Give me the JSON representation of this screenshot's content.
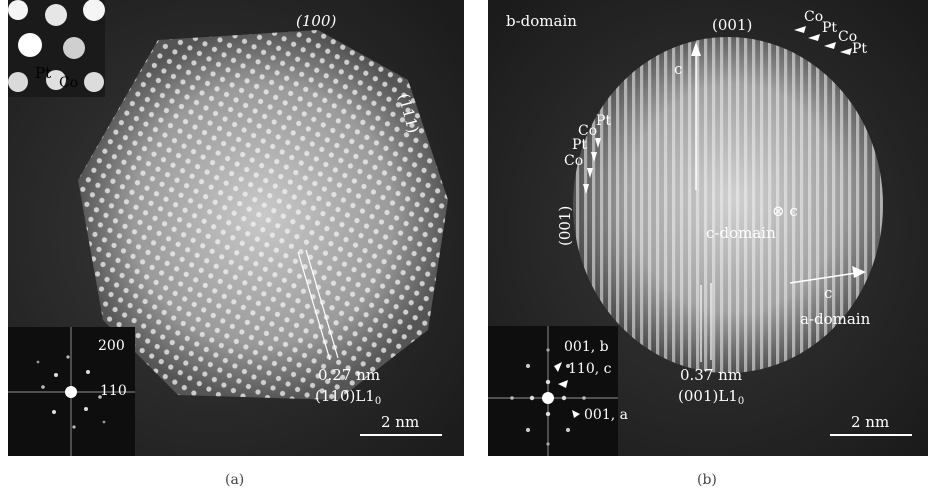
{
  "panel_a": {
    "caption": "(a)",
    "facet_top": "(100)",
    "facet_right": "(111)",
    "inset_pt": "Pt",
    "inset_co": "Co",
    "fft_200": "200",
    "fft_110": "110",
    "spacing": "0.27 nm",
    "plane_main": "(110)L1",
    "plane_sub": "0",
    "scale": "2 nm"
  },
  "panel_b": {
    "caption": "(b)",
    "b_domain": "b-domain",
    "facet_top": "(001)",
    "facet_left": "(001)",
    "c_axis_top": "c",
    "c_axis_center": "⊗ c",
    "c_domain": "c-domain",
    "c_axis_right": "c",
    "a_domain": "a-domain",
    "atoms_top": [
      "Co",
      "Pt",
      "Co",
      "Pt"
    ],
    "atoms_left": [
      "Pt",
      "Co",
      "Pt",
      "Co"
    ],
    "fft_001b": "001, b",
    "fft_110c": "110, c",
    "fft_001a": "001, a",
    "spacing": "0.37 nm",
    "plane_main": "(001)L1",
    "plane_sub": "0",
    "scale": "2 nm"
  }
}
